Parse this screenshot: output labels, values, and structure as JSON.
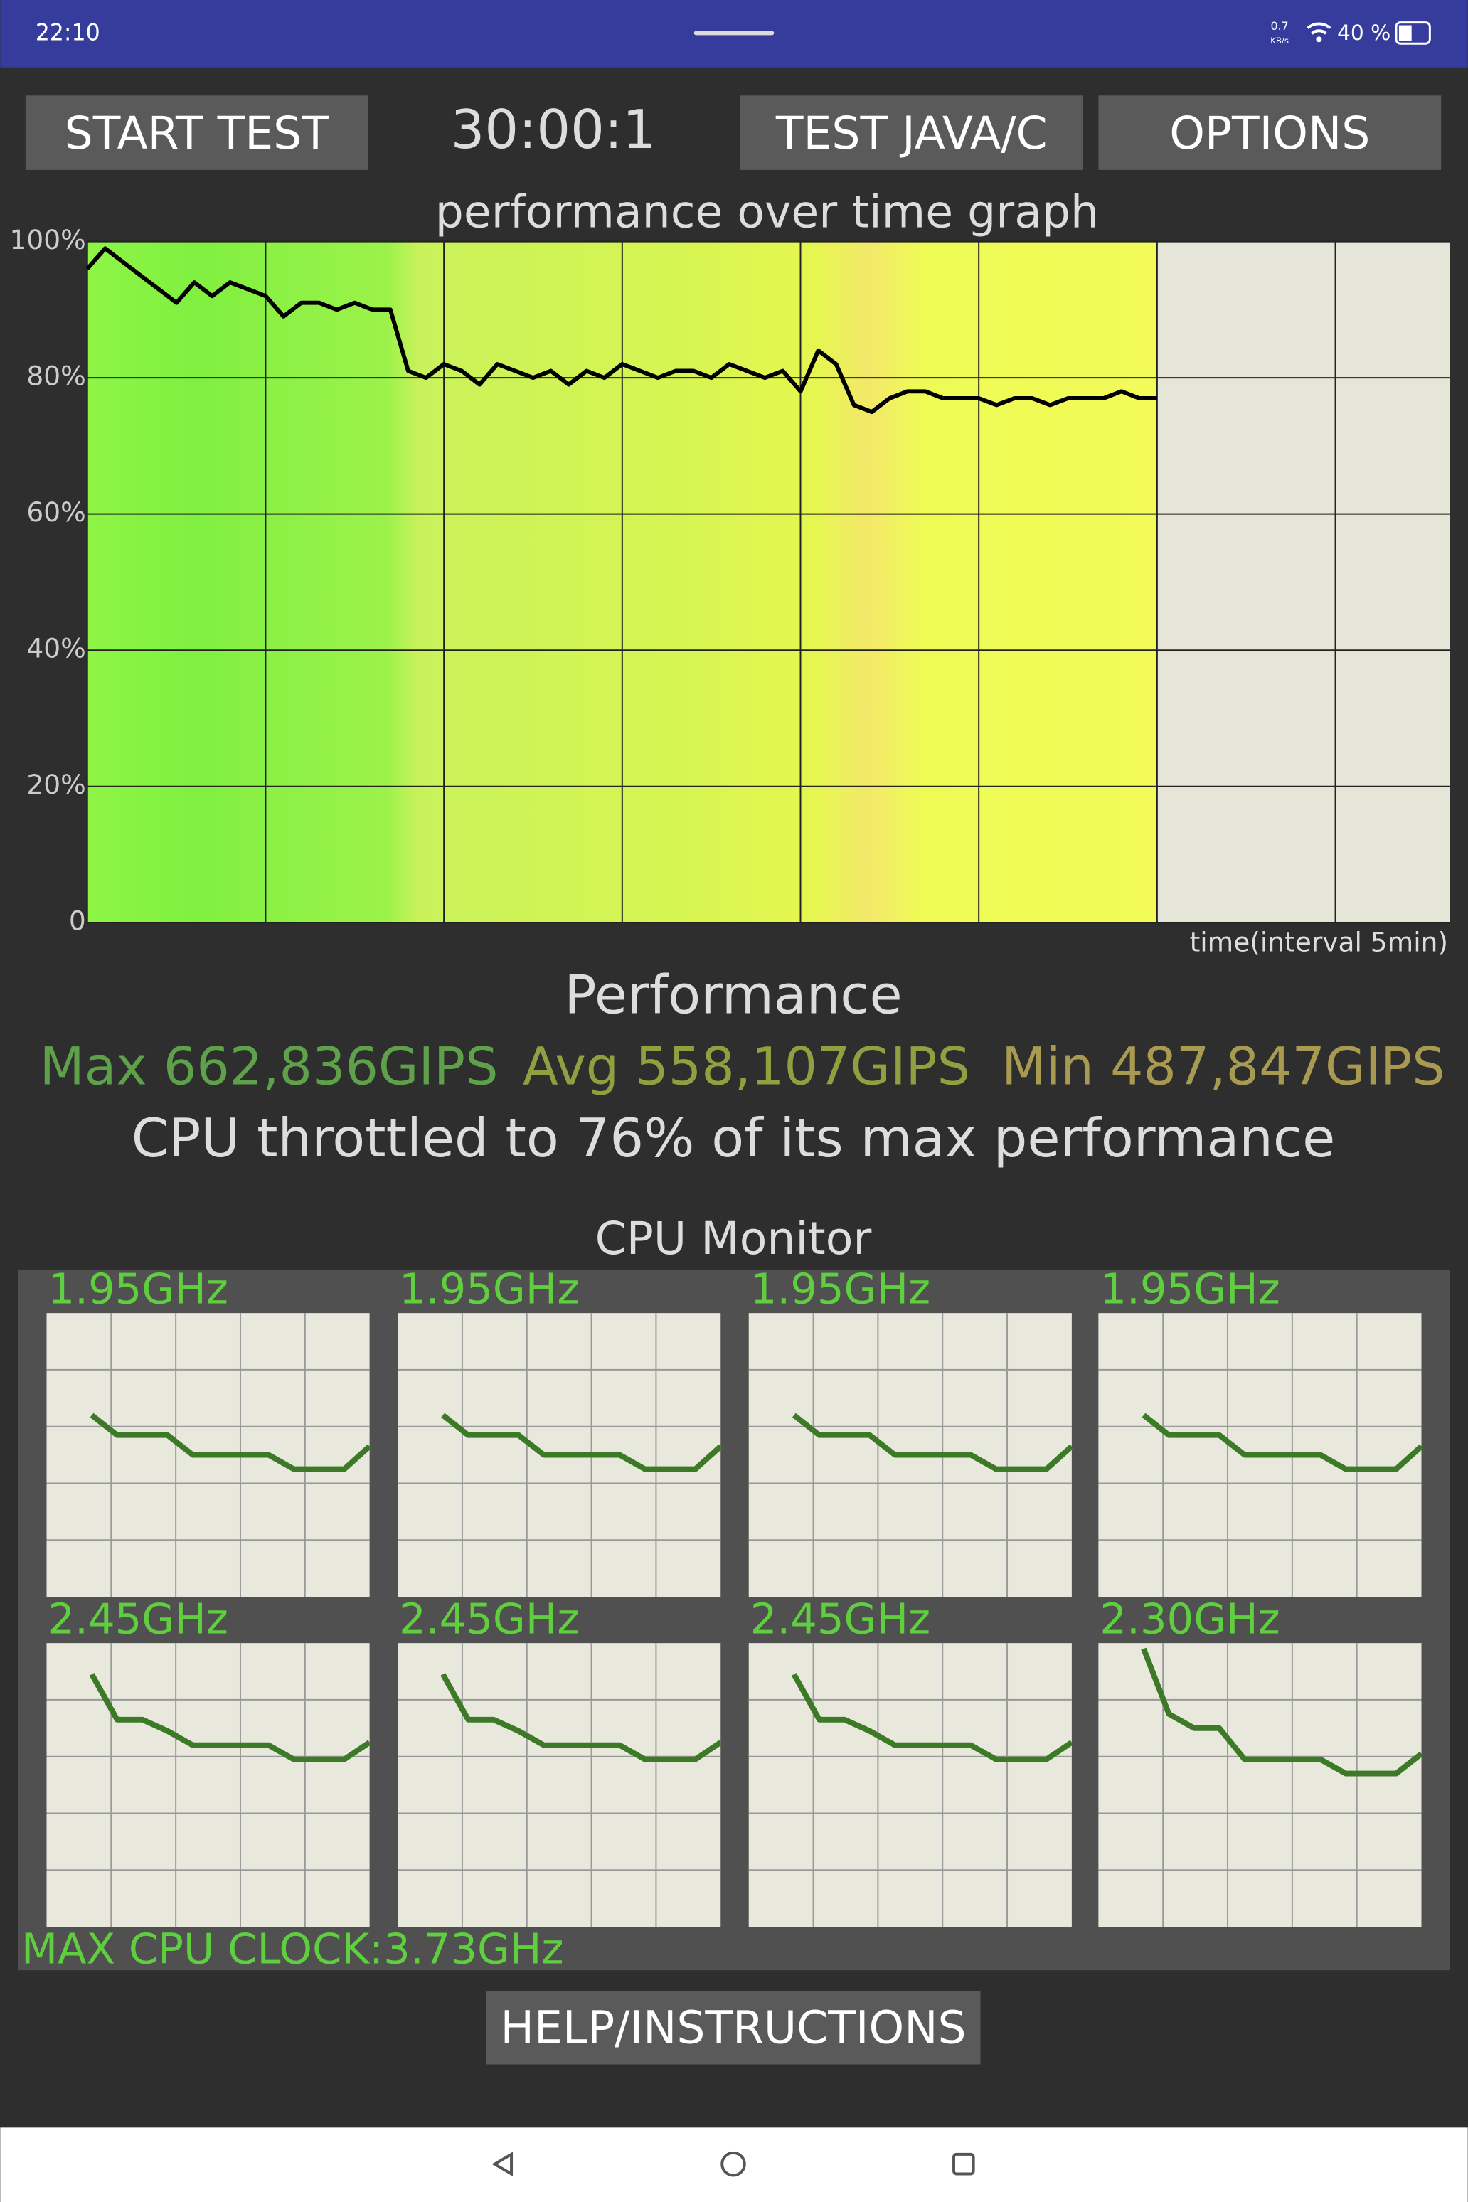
{
  "status_bar": {
    "time": "22:10",
    "net_speed": "0.7",
    "net_unit": "KB/s",
    "battery": "40 %"
  },
  "toolbar": {
    "start_button": "START TEST",
    "timer": "30:00:1",
    "java_button": "TEST JAVA/C",
    "options_button": "OPTIONS"
  },
  "chart_data": {
    "type": "line",
    "title": "performance over time graph",
    "x_label": "time(interval 5min)",
    "x": [
      0,
      0.5,
      1,
      1.5,
      2,
      2.5,
      3,
      3.5,
      4,
      4.5,
      5,
      5.5,
      6,
      6.5,
      7,
      7.5,
      8,
      8.5,
      9,
      9.5,
      10,
      10.5,
      11,
      11.5,
      12,
      12.5,
      13,
      13.5,
      14,
      14.5,
      15,
      15.5,
      16,
      16.5,
      17,
      17.5,
      18,
      18.5,
      19,
      19.5,
      20,
      20.5,
      21,
      21.5,
      22,
      22.5,
      23,
      23.5,
      24,
      24.5,
      25,
      25.5,
      26,
      26.5,
      27,
      27.5,
      28,
      28.5,
      29,
      29.5,
      30
    ],
    "values": [
      96,
      99,
      97,
      95,
      93,
      91,
      94,
      92,
      94,
      93,
      92,
      89,
      91,
      91,
      90,
      91,
      90,
      90,
      81,
      80,
      82,
      81,
      79,
      82,
      81,
      80,
      81,
      79,
      81,
      80,
      82,
      81,
      80,
      81,
      81,
      80,
      82,
      81,
      80,
      81,
      78,
      84,
      82,
      76,
      75,
      77,
      78,
      78,
      77,
      77,
      77,
      76,
      77,
      77,
      76,
      77,
      77,
      77,
      78,
      77,
      77
    ],
    "color": "#000000",
    "xlim": [
      0,
      38.2
    ],
    "xticks": [
      0,
      5,
      10,
      15,
      20,
      25,
      30,
      35
    ],
    "ylim": [
      0,
      100
    ],
    "yticks": [
      0,
      {
        "value": 20,
        "label": "20%"
      },
      {
        "value": 40,
        "label": "40%"
      },
      {
        "value": 60,
        "label": "60%"
      },
      {
        "value": 80,
        "label": "80%"
      },
      {
        "value": 100,
        "label": "100%"
      }
    ],
    "grid": true
  },
  "stats": {
    "title": "Performance",
    "max": "Max 662,836GIPS",
    "avg": "Avg 558,107GIPS",
    "min": "Min 487,847GIPS",
    "summary": "CPU throttled to 76% of its max performance"
  },
  "cpu_monitor": {
    "title": "CPU Monitor",
    "ylim": [
      0,
      100
    ],
    "color": "#3d7a28",
    "cores": [
      {
        "label": "1.95GHz",
        "values": [
          64,
          57,
          57,
          57,
          50,
          50,
          50,
          50,
          45,
          45,
          45,
          53
        ]
      },
      {
        "label": "1.95GHz",
        "values": [
          64,
          57,
          57,
          57,
          50,
          50,
          50,
          50,
          45,
          45,
          45,
          53
        ]
      },
      {
        "label": "1.95GHz",
        "values": [
          64,
          57,
          57,
          57,
          50,
          50,
          50,
          50,
          45,
          45,
          45,
          53
        ]
      },
      {
        "label": "1.95GHz",
        "values": [
          64,
          57,
          57,
          57,
          50,
          50,
          50,
          50,
          45,
          45,
          45,
          53
        ]
      },
      {
        "label": "2.45GHz",
        "values": [
          89,
          73,
          73,
          69,
          64,
          64,
          64,
          64,
          59,
          59,
          59,
          65
        ]
      },
      {
        "label": "2.45GHz",
        "values": [
          89,
          73,
          73,
          69,
          64,
          64,
          64,
          64,
          59,
          59,
          59,
          65
        ]
      },
      {
        "label": "2.45GHz",
        "values": [
          89,
          73,
          73,
          69,
          64,
          64,
          64,
          64,
          59,
          59,
          59,
          65
        ]
      },
      {
        "label": "2.30GHz",
        "values": [
          98,
          75,
          70,
          70,
          59,
          59,
          59,
          59,
          54,
          54,
          54,
          61
        ]
      }
    ],
    "max_clock": "MAX CPU CLOCK:3.73GHz"
  },
  "help_button": "HELP/INSTRUCTIONS"
}
